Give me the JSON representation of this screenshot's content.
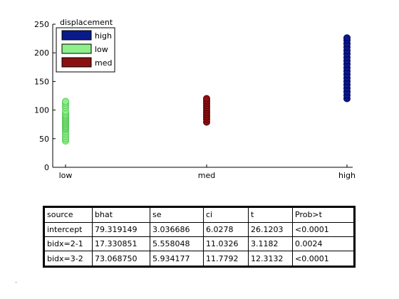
{
  "chart_data": {
    "type": "scatter",
    "title": "",
    "xlabel": "",
    "ylabel": "",
    "categories": [
      "low",
      "med",
      "high"
    ],
    "yticks": [
      0,
      50,
      100,
      150,
      200,
      250
    ],
    "ylim": [
      0,
      250
    ],
    "legend": {
      "title": "displacement",
      "placement": "top-left",
      "entries": [
        {
          "label": "high",
          "color": "#0a1a8a"
        },
        {
          "label": "low",
          "color": "#8ef08a"
        },
        {
          "label": "med",
          "color": "#8b1010"
        }
      ]
    },
    "series": [
      {
        "name": "low",
        "category": "low",
        "face": "#8ef08a",
        "edge": "#58c858",
        "values": [
          46,
          50,
          54,
          58,
          62,
          66,
          68,
          70,
          72,
          74,
          76,
          78,
          80,
          82,
          84,
          86,
          88,
          90,
          92,
          95,
          98,
          104,
          108,
          112,
          115
        ]
      },
      {
        "name": "med",
        "category": "med",
        "face": "#8b1010",
        "edge": "#5a0000",
        "values": [
          79,
          84,
          88,
          92,
          96,
          100,
          104,
          108,
          112,
          116,
          120
        ]
      },
      {
        "name": "high",
        "category": "high",
        "face": "#0a1a8a",
        "edge": "#000060",
        "values": [
          120,
          126,
          132,
          138,
          144,
          150,
          156,
          162,
          168,
          174,
          180,
          186,
          192,
          198,
          204,
          210,
          216,
          222,
          226
        ]
      }
    ]
  },
  "table": {
    "headers": [
      "source",
      "bhat",
      "se",
      "ci",
      "t",
      "Prob>t"
    ],
    "rows": [
      [
        "intercept",
        "79.319149",
        "3.036686",
        "6.0278",
        "26.1203",
        "<0.0001"
      ],
      [
        "bidx=2-1",
        "17.330851",
        "5.558048",
        "11.0326",
        "3.1182",
        "0.0024"
      ],
      [
        "bidx=3-2",
        "73.068750",
        "5.934177",
        "11.7792",
        "12.3132",
        "<0.0001"
      ]
    ]
  }
}
